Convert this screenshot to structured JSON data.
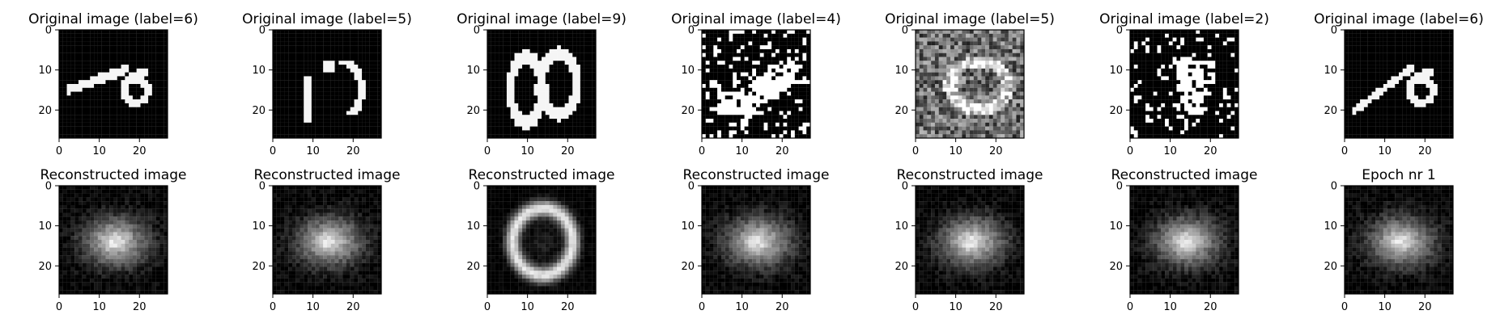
{
  "chart_data": [
    {
      "type": "heatmap",
      "title": "Original image (label=6)",
      "row": 0,
      "column": 0,
      "pattern": "stroke-curl",
      "image_size": 28,
      "colormap": "gray",
      "xlim": [
        0,
        27
      ],
      "ylim": [
        27,
        0
      ],
      "xticks": [
        0,
        10,
        20
      ],
      "yticks": [
        0,
        10,
        20
      ],
      "xticklabels": [
        "0",
        "10",
        "20"
      ],
      "yticklabels": [
        "0",
        "10",
        "20"
      ]
    },
    {
      "type": "heatmap",
      "title": "Original image (label=5)",
      "row": 0,
      "column": 1,
      "pattern": "broken-five",
      "image_size": 28,
      "colormap": "gray",
      "xlim": [
        0,
        27
      ],
      "ylim": [
        27,
        0
      ],
      "xticks": [
        0,
        10,
        20
      ],
      "yticks": [
        0,
        10,
        20
      ],
      "xticklabels": [
        "0",
        "10",
        "20"
      ],
      "yticklabels": [
        "0",
        "10",
        "20"
      ]
    },
    {
      "type": "heatmap",
      "title": "Original image (label=9)",
      "row": 0,
      "column": 2,
      "pattern": "double-loop",
      "image_size": 28,
      "colormap": "gray",
      "xlim": [
        0,
        27
      ],
      "ylim": [
        27,
        0
      ],
      "xticks": [
        0,
        10,
        20
      ],
      "yticks": [
        0,
        10,
        20
      ],
      "xticklabels": [
        "0",
        "10",
        "20"
      ],
      "yticklabels": [
        "0",
        "10",
        "20"
      ]
    },
    {
      "type": "heatmap",
      "title": "Original image (label=4)",
      "row": 0,
      "column": 3,
      "pattern": "noisy-binary",
      "image_size": 28,
      "colormap": "gray",
      "xlim": [
        0,
        27
      ],
      "ylim": [
        27,
        0
      ],
      "xticks": [
        0,
        10,
        20
      ],
      "yticks": [
        0,
        10,
        20
      ],
      "xticklabels": [
        "0",
        "10",
        "20"
      ],
      "yticklabels": [
        "0",
        "10",
        "20"
      ]
    },
    {
      "type": "heatmap",
      "title": "Original image (label=5)",
      "row": 0,
      "column": 4,
      "pattern": "heavy-noise",
      "image_size": 28,
      "colormap": "gray",
      "xlim": [
        0,
        27
      ],
      "ylim": [
        27,
        0
      ],
      "xticks": [
        0,
        10,
        20
      ],
      "yticks": [
        0,
        10,
        20
      ],
      "xticklabels": [
        "0",
        "10",
        "20"
      ],
      "yticklabels": [
        "0",
        "10",
        "20"
      ]
    },
    {
      "type": "heatmap",
      "title": "Original image (label=2)",
      "row": 0,
      "column": 5,
      "pattern": "sparse-binary",
      "image_size": 28,
      "colormap": "gray",
      "xlim": [
        0,
        27
      ],
      "ylim": [
        27,
        0
      ],
      "xticks": [
        0,
        10,
        20
      ],
      "yticks": [
        0,
        10,
        20
      ],
      "xticklabels": [
        "0",
        "10",
        "20"
      ],
      "yticklabels": [
        "0",
        "10",
        "20"
      ]
    },
    {
      "type": "heatmap",
      "title": "Original image (label=6)",
      "row": 0,
      "column": 6,
      "pattern": "stroke-curl-alt",
      "image_size": 28,
      "colormap": "gray",
      "xlim": [
        0,
        27
      ],
      "ylim": [
        27,
        0
      ],
      "xticks": [
        0,
        10,
        20
      ],
      "yticks": [
        0,
        10,
        20
      ],
      "xticklabels": [
        "0",
        "10",
        "20"
      ],
      "yticklabels": [
        "0",
        "10",
        "20"
      ]
    },
    {
      "type": "heatmap",
      "title": "Reconstructed image",
      "row": 1,
      "column": 0,
      "pattern": "blurred-reconstruction",
      "image_size": 28,
      "colormap": "gray",
      "xlim": [
        0,
        27
      ],
      "ylim": [
        27,
        0
      ],
      "xticks": [
        0,
        10,
        20
      ],
      "yticks": [
        0,
        10,
        20
      ],
      "xticklabels": [
        "0",
        "10",
        "20"
      ],
      "yticklabels": [
        "0",
        "10",
        "20"
      ]
    },
    {
      "type": "heatmap",
      "title": "Reconstructed image",
      "row": 1,
      "column": 1,
      "pattern": "blurred-reconstruction",
      "image_size": 28,
      "colormap": "gray",
      "xlim": [
        0,
        27
      ],
      "ylim": [
        27,
        0
      ],
      "xticks": [
        0,
        10,
        20
      ],
      "yticks": [
        0,
        10,
        20
      ],
      "xticklabels": [
        "0",
        "10",
        "20"
      ],
      "yticklabels": [
        "0",
        "10",
        "20"
      ]
    },
    {
      "type": "heatmap",
      "title": "Reconstructed image",
      "row": 1,
      "column": 2,
      "pattern": "ring-reconstruction",
      "image_size": 28,
      "colormap": "gray",
      "xlim": [
        0,
        27
      ],
      "ylim": [
        27,
        0
      ],
      "xticks": [
        0,
        10,
        20
      ],
      "yticks": [
        0,
        10,
        20
      ],
      "xticklabels": [
        "0",
        "10",
        "20"
      ],
      "yticklabels": [
        "0",
        "10",
        "20"
      ]
    },
    {
      "type": "heatmap",
      "title": "Reconstructed image",
      "row": 1,
      "column": 3,
      "pattern": "blurred-reconstruction",
      "image_size": 28,
      "colormap": "gray",
      "xlim": [
        0,
        27
      ],
      "ylim": [
        27,
        0
      ],
      "xticks": [
        0,
        10,
        20
      ],
      "yticks": [
        0,
        10,
        20
      ],
      "xticklabels": [
        "0",
        "10",
        "20"
      ],
      "yticklabels": [
        "0",
        "10",
        "20"
      ]
    },
    {
      "type": "heatmap",
      "title": "Reconstructed image",
      "row": 1,
      "column": 4,
      "pattern": "blurred-reconstruction",
      "image_size": 28,
      "colormap": "gray",
      "xlim": [
        0,
        27
      ],
      "ylim": [
        27,
        0
      ],
      "xticks": [
        0,
        10,
        20
      ],
      "yticks": [
        0,
        10,
        20
      ],
      "xticklabels": [
        "0",
        "10",
        "20"
      ],
      "yticklabels": [
        "0",
        "10",
        "20"
      ]
    },
    {
      "type": "heatmap",
      "title": "Reconstructed image",
      "row": 1,
      "column": 5,
      "pattern": "blurred-reconstruction",
      "image_size": 28,
      "colormap": "gray",
      "xlim": [
        0,
        27
      ],
      "ylim": [
        27,
        0
      ],
      "xticks": [
        0,
        10,
        20
      ],
      "yticks": [
        0,
        10,
        20
      ],
      "xticklabels": [
        "0",
        "10",
        "20"
      ],
      "yticklabels": [
        "0",
        "10",
        "20"
      ]
    },
    {
      "type": "heatmap",
      "title": "Epoch nr 1",
      "row": 1,
      "column": 6,
      "pattern": "blurred-reconstruction",
      "image_size": 28,
      "colormap": "gray",
      "xlim": [
        0,
        27
      ],
      "ylim": [
        27,
        0
      ],
      "xticks": [
        0,
        10,
        20
      ],
      "yticks": [
        0,
        10,
        20
      ],
      "xticklabels": [
        "0",
        "10",
        "20"
      ],
      "yticklabels": [
        "0",
        "10",
        "20"
      ]
    }
  ]
}
